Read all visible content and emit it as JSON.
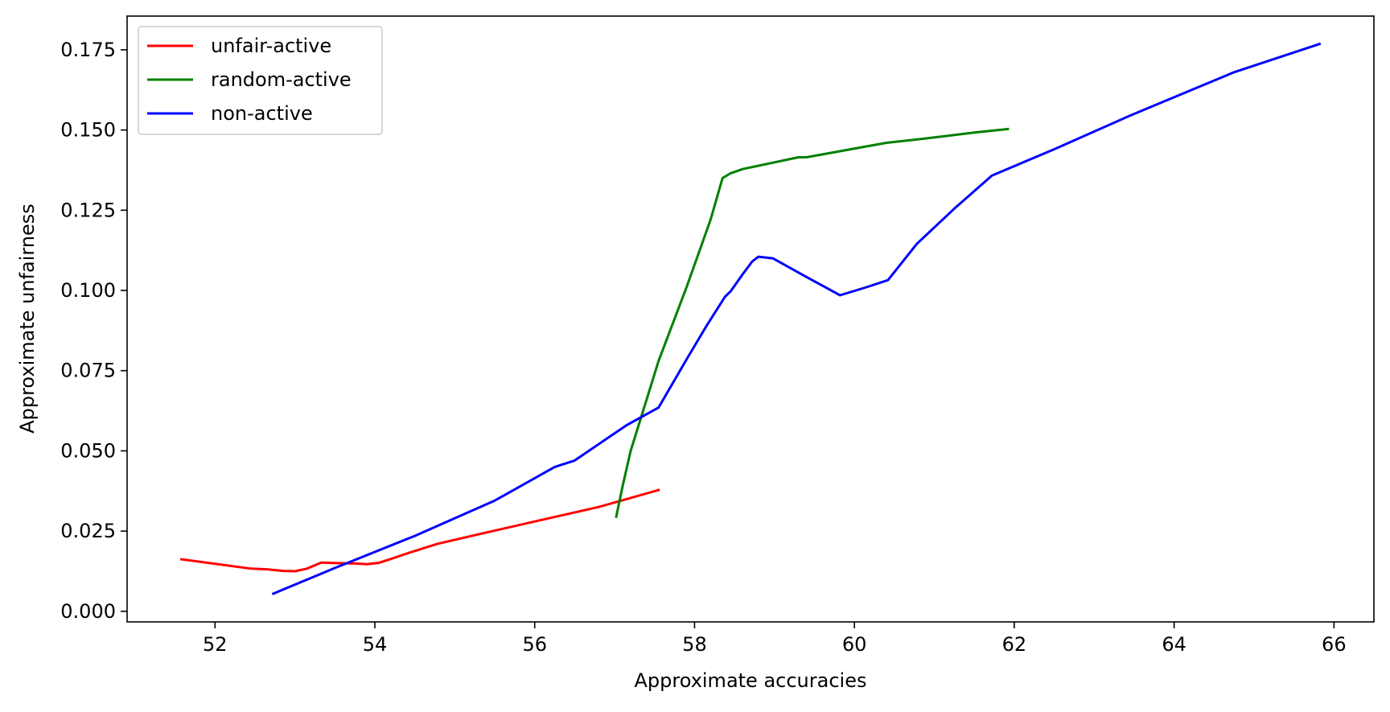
{
  "chart_data": {
    "type": "line",
    "title": "",
    "xlabel": "Approximate accuracies",
    "ylabel": "Approximate unfairness",
    "xlim": [
      50.9,
      66.5
    ],
    "ylim": [
      -0.0033,
      0.1855
    ],
    "xticks": [
      52,
      54,
      56,
      58,
      60,
      62,
      64,
      66
    ],
    "xtick_labels": [
      "52",
      "54",
      "56",
      "58",
      "60",
      "62",
      "64",
      "66"
    ],
    "yticks": [
      0,
      0.025,
      0.05,
      0.075,
      0.1,
      0.125,
      0.15,
      0.175
    ],
    "ytick_labels": [
      "0.000",
      "0.025",
      "0.050",
      "0.075",
      "0.100",
      "0.125",
      "0.150",
      "0.175"
    ],
    "grid": false,
    "legend_position": "top-left",
    "series": [
      {
        "name": "unfair-active",
        "color": "#ff0000",
        "x": [
          51.58,
          52.45,
          52.65,
          52.85,
          53.0,
          53.15,
          53.33,
          53.55,
          53.75,
          53.9,
          54.05,
          54.2,
          54.4,
          54.78,
          55.3,
          56.0,
          56.8,
          57.55
        ],
        "y": [
          0.0162,
          0.0133,
          0.0131,
          0.0126,
          0.0125,
          0.0133,
          0.0152,
          0.015,
          0.0149,
          0.0147,
          0.0151,
          0.0163,
          0.018,
          0.021,
          0.024,
          0.028,
          0.0325,
          0.0378
        ]
      },
      {
        "name": "random-active",
        "color": "#008000",
        "x": [
          57.02,
          57.1,
          57.2,
          57.35,
          57.55,
          57.9,
          58.2,
          58.35,
          58.45,
          58.6,
          59.3,
          59.4,
          60.4,
          60.7,
          61.1,
          61.5,
          61.92
        ],
        "y": [
          0.0295,
          0.039,
          0.05,
          0.062,
          0.078,
          0.101,
          0.122,
          0.135,
          0.1365,
          0.1378,
          0.1415,
          0.1415,
          0.146,
          0.1468,
          0.148,
          0.1492,
          0.1503
        ]
      },
      {
        "name": "non-active",
        "color": "#0000ff",
        "x": [
          52.73,
          53.5,
          54.5,
          55.5,
          56.25,
          56.5,
          57.15,
          57.55,
          57.9,
          58.15,
          58.38,
          58.45,
          58.6,
          58.72,
          58.8,
          58.98,
          59.4,
          59.82,
          60.15,
          60.42,
          60.78,
          61.25,
          61.72,
          62.5,
          63.45,
          64.75,
          65.82
        ],
        "y": [
          0.0055,
          0.0135,
          0.0235,
          0.0345,
          0.045,
          0.047,
          0.058,
          0.0635,
          0.0785,
          0.089,
          0.098,
          0.0997,
          0.105,
          0.109,
          0.1105,
          0.11,
          0.1042,
          0.0985,
          0.101,
          0.1032,
          0.1145,
          0.1255,
          0.1358,
          0.144,
          0.1545,
          0.168,
          0.1768
        ]
      }
    ]
  }
}
